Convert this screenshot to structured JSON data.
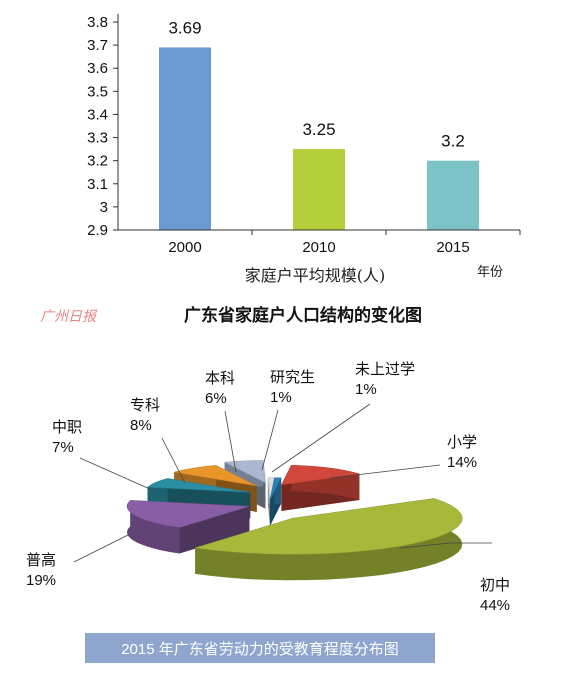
{
  "chart_data": [
    {
      "type": "bar",
      "title": "广东省家庭户人口结构的变化图",
      "xlabel": "家庭户平均规模(人)",
      "xunit": "年份",
      "categories": [
        "2000",
        "2010",
        "2015"
      ],
      "values": [
        3.69,
        3.25,
        3.2
      ],
      "value_labels": [
        "3.69",
        "3.25",
        "3.2"
      ],
      "ylim": [
        2.9,
        3.8
      ],
      "yticks": [
        "2.9",
        "3",
        "3.1",
        "3.2",
        "3.3",
        "3.4",
        "3.5",
        "3.6",
        "3.7",
        "3.8"
      ],
      "colors": [
        "#6a9ad0",
        "#b5cf3a",
        "#7cc3c7"
      ],
      "grid": false
    },
    {
      "type": "pie",
      "title": "2015 年广东省劳动力的受教育程度分布图",
      "title_bg": "#8ea5ce",
      "slices": [
        {
          "label": "研究生",
          "value": 1,
          "pct_text": "1%",
          "color": "#dcdcdc"
        },
        {
          "label": "未上过学",
          "value": 1,
          "pct_text": "1%",
          "color": "#2a83b6"
        },
        {
          "label": "小学",
          "value": 14,
          "pct_text": "14%",
          "color": "#d2473b"
        },
        {
          "label": "初中",
          "value": 44,
          "pct_text": "44%",
          "color": "#a7b83a"
        },
        {
          "label": "普高",
          "value": 19,
          "pct_text": "19%",
          "color": "#8a5ea6"
        },
        {
          "label": "中职",
          "value": 7,
          "pct_text": "7%",
          "color": "#2a8fa3"
        },
        {
          "label": "专科",
          "value": 8,
          "pct_text": "8%",
          "color": "#e8952a"
        },
        {
          "label": "本科",
          "value": 6,
          "pct_text": "6%",
          "color": "#a9b7d0"
        }
      ]
    }
  ],
  "watermark": "广州日报",
  "colors": {
    "axis": "#333333",
    "watermark": "#e8848a"
  }
}
